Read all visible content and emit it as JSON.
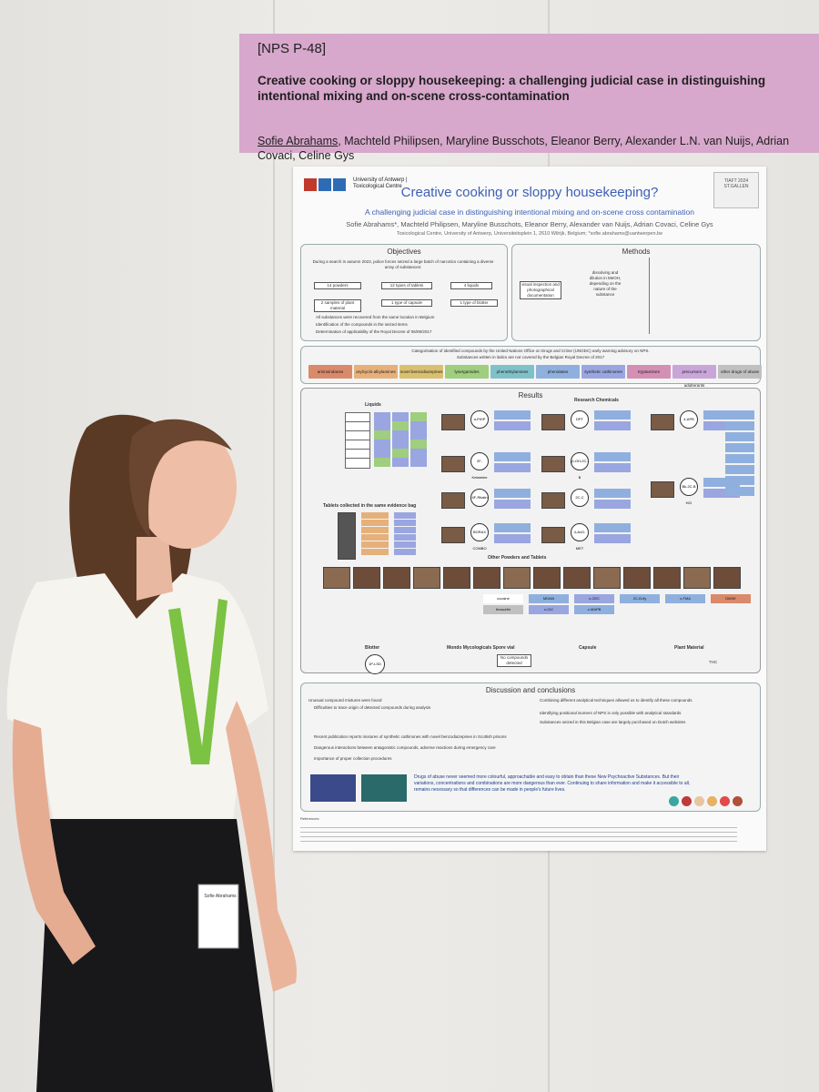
{
  "header": {
    "code": "[NPS P-48]",
    "title": "Creative cooking or sloppy housekeeping: a challenging judicial case in distinguishing intentional mixing and on-scene cross-contamination",
    "first_author": "Sofie Abrahams",
    "other_authors": ", Machteld Philipsen, Maryline Busschots, Eleanor Berry, Alexander L.N. van Nuijs, Adrian Covaci, Celine Gys"
  },
  "poster": {
    "university": "University of Antwerp | Toxicological Centre",
    "title": "Creative cooking or sloppy housekeeping?",
    "subtitle": "A challenging judicial case in distinguishing intentional mixing and on-scene cross contamination",
    "authors": "Sofie Abrahams*, Machteld Philipsen, Maryline Busschots, Eleanor Berry, Alexander van Nuijs, Adrian Covaci, Celine Gys",
    "affiliation": "Toxicological Centre, University of Antwerp, Universiteitsplein 1, 2610 Wilrijk, Belgium; *sofie.abrahams@uantwerpen.be",
    "badge": "TIAFT 2024 ST.GALLEN",
    "objectives": {
      "heading": "Objectives",
      "intro": "During a search in autumn 2023, police forces seized a large batch of narcotics containing a diverse array of substances:",
      "items": [
        "14 powders",
        "12 types of tablets",
        "4 liquids",
        "2 samples of plant material",
        "1 type of capsule",
        "1 type of blotter"
      ],
      "bullets": [
        "All substances were recovered from the same location in Belgium",
        "Identification of the compounds in the seized items",
        "Determination of applicability of the Royal Decree of 06/09/2017"
      ]
    },
    "methods": {
      "heading": "Methods",
      "steps": [
        "visual inspection and photographical documentation",
        "dissolving and dilution in MeOH, depending on the nature of the substance"
      ]
    },
    "categories": {
      "line1": "Categorisation of identified compounds by the United Nations Office on Drugs and Crime (UNODC) early warning advisory on NPS.",
      "line2": "Substances written in italics are not covered by the Belgian Royal Decree of 2017",
      "items": [
        {
          "label": "aminoindanes",
          "color": "#d98a6a"
        },
        {
          "label": "arylcyclo-alkylamines",
          "color": "#e6b07a"
        },
        {
          "label": "novel benzodiazepines",
          "color": "#d9c070"
        },
        {
          "label": "lysergamides",
          "color": "#9fce7e"
        },
        {
          "label": "phenethylamines",
          "color": "#7fc1c9"
        },
        {
          "label": "phenidates",
          "color": "#8fb0de"
        },
        {
          "label": "synthetic cathinones",
          "color": "#9aa6e0"
        },
        {
          "label": "tryptamines",
          "color": "#d48fb4"
        },
        {
          "label": "precursors or adulterants",
          "color": "#c9a6d9"
        },
        {
          "label": "other drugs of abuse",
          "color": "#c0c0c0"
        }
      ]
    },
    "results": {
      "heading": "Results",
      "liquids": "Liquids",
      "research": "Research Chemicals",
      "tablets": "Tablets collected in the same evidence bag",
      "other": "Other Powders and Tablets",
      "blotter": "Blotter",
      "spore": "Mondo Mycologicals Spore vial",
      "capsule": "Capsule",
      "plant": "Plant Material",
      "rc_labels": [
        "α-PiHP",
        "DPT",
        "4-APB",
        "2F-Ketamine",
        "β-OH-2C-B",
        "4F-Ritalin",
        "2C-C",
        "Bk-2C-B HCl",
        "BORAX COMBO",
        "4-AcO-MET"
      ],
      "other_labels": [
        "cocaine",
        "MDMA",
        "x-CEC",
        "2C-B-fly",
        "x-FMA",
        "DMXE",
        "fenacetin",
        "x-CIC",
        "x-MAPB"
      ],
      "blotter_label": "1P-LSD",
      "spore_text": "No compounds detected",
      "plant_text": "THC"
    },
    "discussion": {
      "heading": "Discussion and conclusions",
      "left": [
        "Unusual compound mixtures were found",
        "Difficulties to trace origin of detected compounds during analysis",
        "Recent publication reports mixtures of synthetic cathinones with novel benzodiazepines in Scottish prisons",
        "Dangerous interactions between antagonistic compounds, adverse reactions during emergency care",
        "Importance of proper collection procedures"
      ],
      "right": [
        "Combining different analytical techniques allowed us to identify all these compounds",
        "Identifying positional isomers of NPS is only possible with analytical standards",
        "Substances seized in this Belgian case are largely purchased on Dutch websites"
      ],
      "closing": "Drugs of abuse never seemed more colourful, approachable and easy to obtain than these New Psychoactive Substances. But their variations, concentrations and combinations are more dangerous than ever. Continuing to share information and make it accessible to all, remains necessary so that differences can be made in people's future lives."
    },
    "references_label": "References"
  },
  "lanyard_badge": "Sofie Abrahams"
}
